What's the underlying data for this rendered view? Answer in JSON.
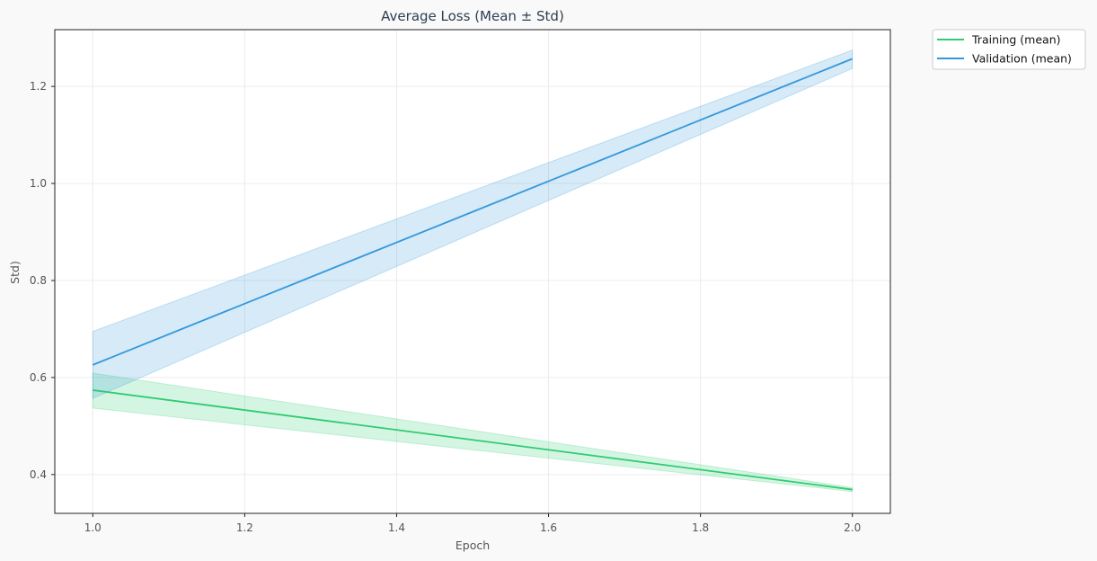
{
  "chart_data": {
    "type": "line",
    "title": "Average Loss (Mean ± Std)",
    "xlabel": "Epoch",
    "ylabel": "Std)",
    "x": [
      1.0,
      2.0
    ],
    "xlim": [
      0.95,
      2.05
    ],
    "ylim": [
      0.32,
      1.317
    ],
    "xticks": [
      1.0,
      1.2,
      1.4,
      1.6,
      1.8,
      2.0
    ],
    "xtick_labels": [
      "1.0",
      "1.2",
      "1.4",
      "1.6",
      "1.8",
      "2.0"
    ],
    "yticks": [
      0.4,
      0.6,
      0.8,
      1.0,
      1.2
    ],
    "ytick_labels": [
      "0.4",
      "0.6",
      "0.8",
      "1.0",
      "1.2"
    ],
    "grid": true,
    "legend_position": "outside-top-right",
    "series": [
      {
        "name": "Training (mean)",
        "color": "#2ecc71",
        "mean": [
          0.574,
          0.369
        ],
        "lower": [
          0.537,
          0.365
        ],
        "upper": [
          0.609,
          0.373
        ]
      },
      {
        "name": "Validation (mean)",
        "color": "#3498db",
        "mean": [
          0.626,
          1.257
        ],
        "lower": [
          0.557,
          1.237
        ],
        "upper": [
          0.695,
          1.275
        ]
      }
    ]
  }
}
